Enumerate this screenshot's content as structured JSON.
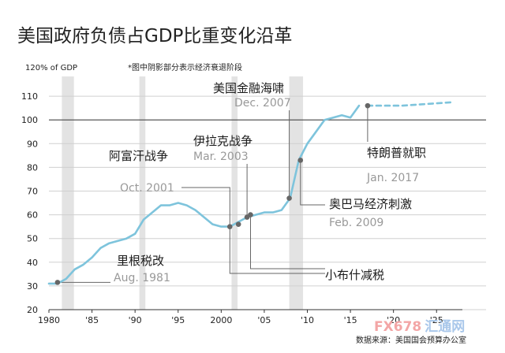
{
  "chart_data": {
    "type": "line",
    "title": "美国政府负债占GDP比重变化沿革",
    "ylabel": "120% of GDP",
    "note": "*图中阴影部分表示经济衰退阶段",
    "source": "数据来源：美国国会预算办公室",
    "watermark": "FX678 汇通网",
    "xlim": [
      1980,
      2028
    ],
    "ylim": [
      20,
      120
    ],
    "x_ticks": [
      {
        "value": 1980,
        "label": "1980"
      },
      {
        "value": 1985,
        "label": "'85"
      },
      {
        "value": 1990,
        "label": "'90"
      },
      {
        "value": 1995,
        "label": "'95"
      },
      {
        "value": 2000,
        "label": "2000"
      },
      {
        "value": 2005,
        "label": "'05"
      },
      {
        "value": 2010,
        "label": "'10"
      },
      {
        "value": 2015,
        "label": "'15"
      },
      {
        "value": 2020,
        "label": "'20"
      },
      {
        "value": 2025,
        "label": "'25"
      }
    ],
    "y_ticks": [
      {
        "value": 110,
        "label": "110"
      },
      {
        "value": 100,
        "label": "100"
      },
      {
        "value": 90,
        "label": "90"
      },
      {
        "value": 80,
        "label": "80"
      },
      {
        "value": 70,
        "label": "70"
      },
      {
        "value": 60,
        "label": "60"
      },
      {
        "value": 50,
        "label": "50"
      },
      {
        "value": 40,
        "label": "40"
      },
      {
        "value": 30,
        "label": "30"
      },
      {
        "value": 20,
        "label": "20"
      }
    ],
    "reference_line": 100,
    "recessions": [
      [
        1981.5,
        1982.9
      ],
      [
        1990.5,
        1991.2
      ],
      [
        2001.2,
        2001.9
      ],
      [
        2007.9,
        2009.5
      ]
    ],
    "series": [
      {
        "style": "solid",
        "color": "#7ec4dc",
        "x": [
          1980,
          1981,
          1982,
          1983,
          1984,
          1985,
          1986,
          1987,
          1988,
          1989,
          1990,
          1991,
          1992,
          1993,
          1994,
          1995,
          1996,
          1997,
          1998,
          1999,
          2000,
          2001,
          2002,
          2003,
          2004,
          2005,
          2006,
          2007,
          2008,
          2009,
          2010,
          2011,
          2012,
          2013,
          2014,
          2015,
          2016
        ],
        "y": [
          31,
          31,
          33,
          37,
          39,
          42,
          46,
          48,
          49,
          50,
          52,
          58,
          61,
          64,
          64,
          65,
          64,
          62,
          59,
          56,
          55,
          55,
          57,
          59,
          60,
          61,
          61,
          62,
          67,
          83,
          90,
          95,
          100,
          101,
          102,
          101,
          106
        ]
      },
      {
        "style": "dashed",
        "color": "#7ec4dc",
        "x": [
          2017,
          2019,
          2021,
          2023,
          2025,
          2027
        ],
        "y": [
          106,
          106,
          106,
          106.5,
          107,
          107.5
        ]
      }
    ],
    "markers": [
      {
        "x": 1981,
        "y": 31.5
      },
      {
        "x": 2001,
        "y": 55
      },
      {
        "x": 2002,
        "y": 56
      },
      {
        "x": 2003,
        "y": 59
      },
      {
        "x": 2003.4,
        "y": 60
      },
      {
        "x": 2007.9,
        "y": 67
      },
      {
        "x": 2009.2,
        "y": 83
      },
      {
        "x": 2017,
        "y": 106
      }
    ],
    "annotations": [
      {
        "label": "里根税改",
        "sub": "Aug. 1981"
      },
      {
        "label": "",
        "sub": "Oct. 2001"
      },
      {
        "label": "阿富汗战争",
        "sub": ""
      },
      {
        "label": "伊拉克战争",
        "sub": "Mar. 2003"
      },
      {
        "label": "美国金融海啸",
        "sub": "Dec. 2007"
      },
      {
        "label": "奥巴马经济刺激",
        "sub": "Feb. 2009"
      },
      {
        "label": "特朗普就职",
        "sub": "Jan. 2017"
      },
      {
        "label": "小布什减税",
        "sub": ""
      }
    ]
  }
}
